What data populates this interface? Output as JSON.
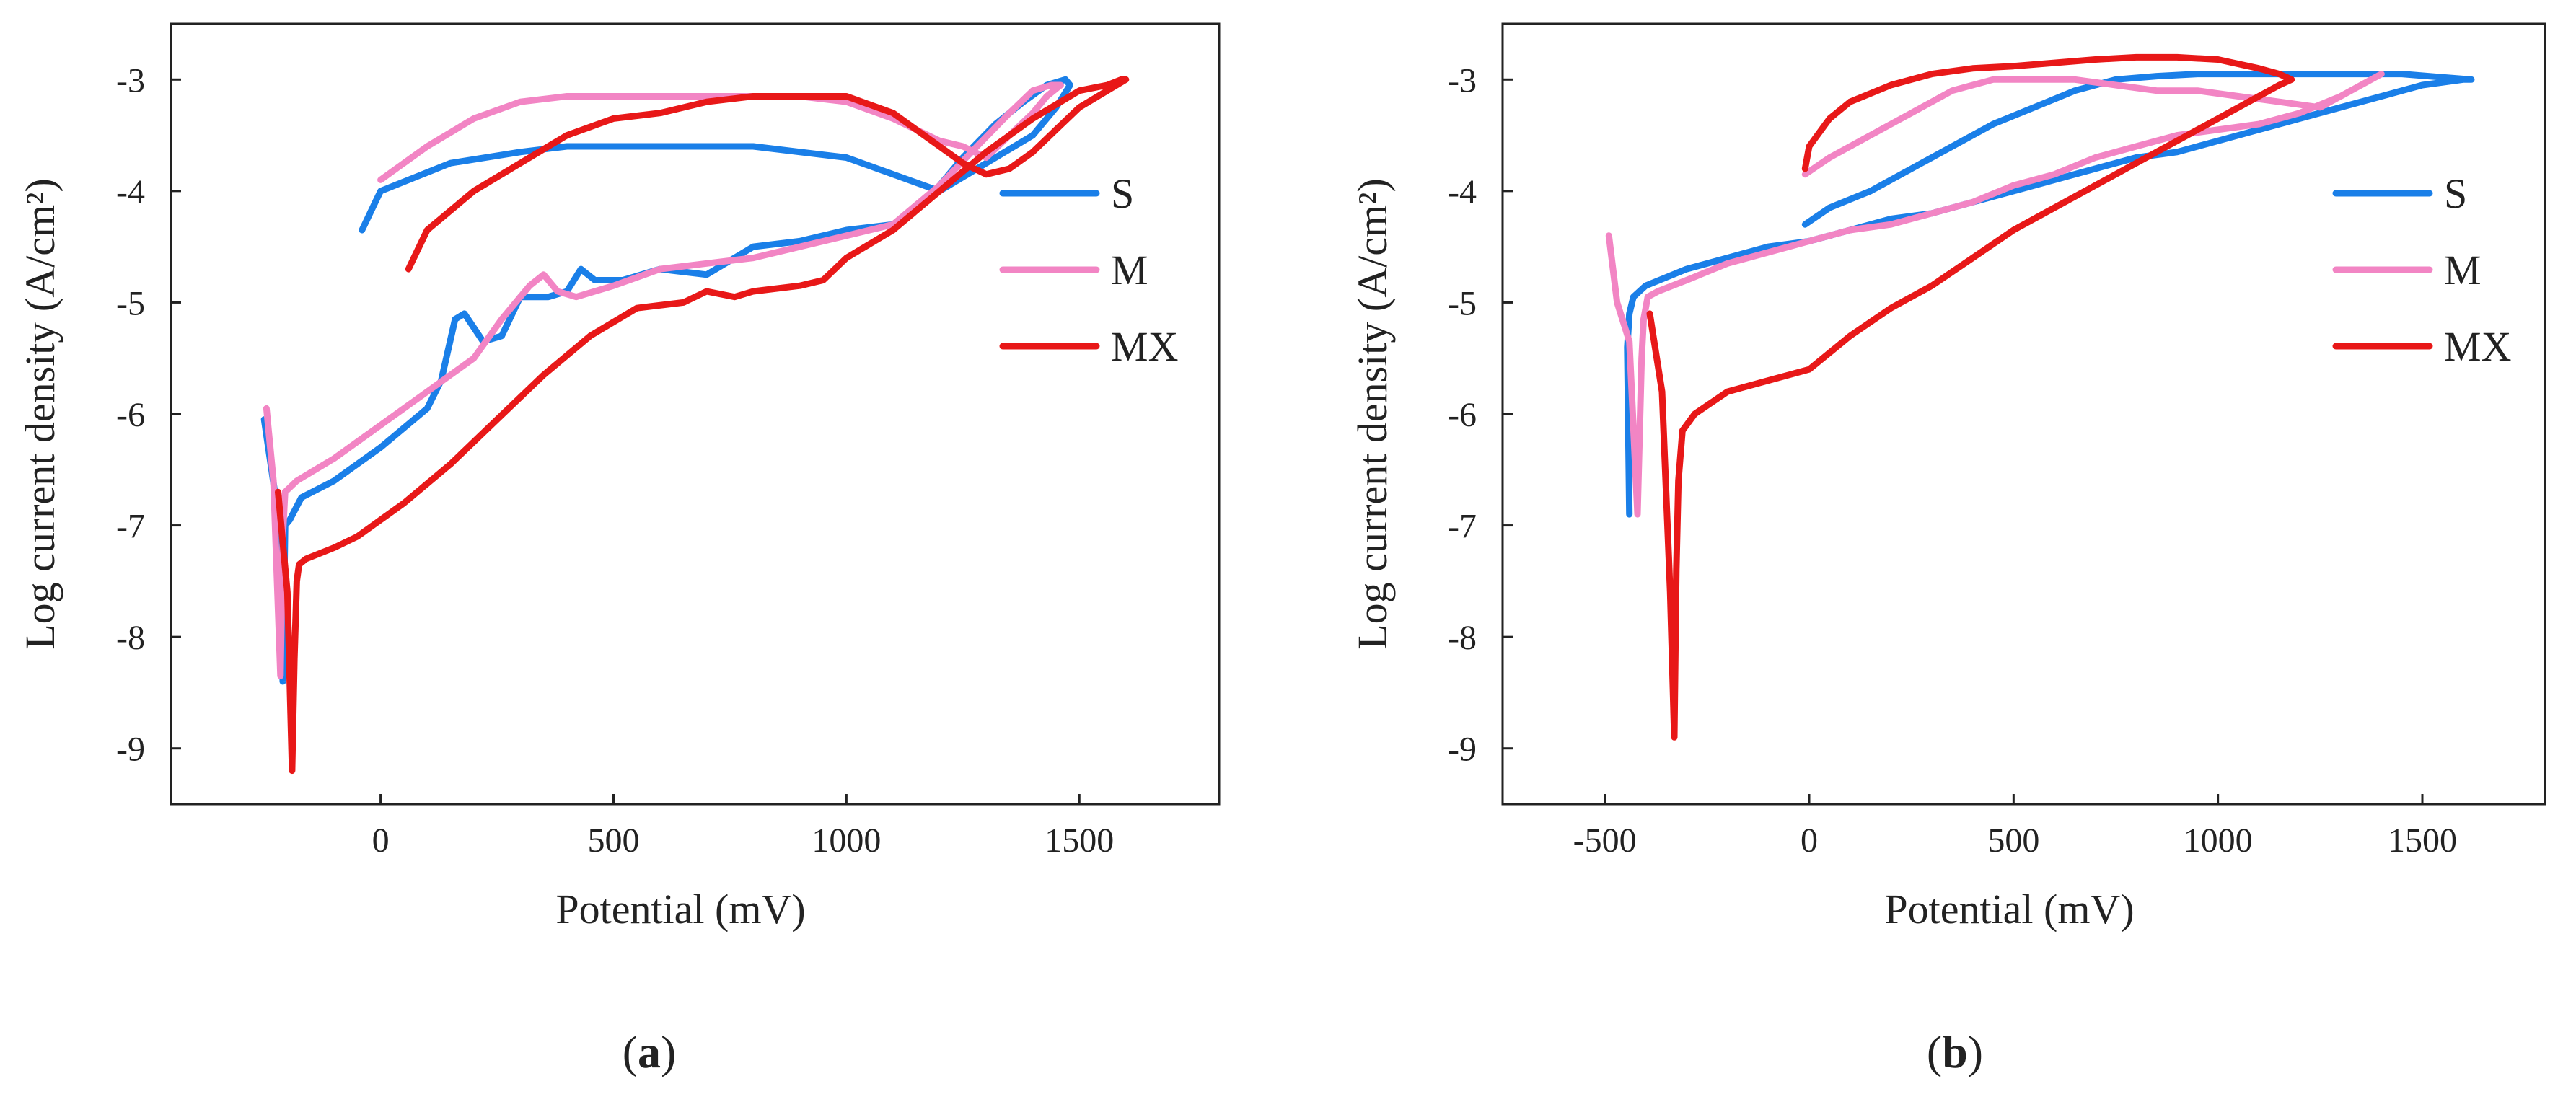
{
  "figure": {
    "panel_labels": [
      {
        "open": "(",
        "letter": "a",
        "close": ")"
      },
      {
        "open": "(",
        "letter": "b",
        "close": ")"
      }
    ]
  },
  "colors": {
    "S": "#1a7fe8",
    "M": "#f285c4",
    "MX": "#e81818"
  },
  "chart_data": [
    {
      "type": "line",
      "xlabel": "Potential (mV)",
      "ylabel": "Log current density (A/cm²)",
      "xlim": [
        -450,
        1800
      ],
      "ylim": [
        -9.5,
        -2.5
      ],
      "xticks": [
        0,
        500,
        1000,
        1500
      ],
      "yticks": [
        -3,
        -4,
        -5,
        -6,
        -7,
        -8,
        -9
      ],
      "xticklabels": [
        "0",
        "500",
        "1000",
        "1500"
      ],
      "yticklabels": [
        "-3",
        "-4",
        "-5",
        "-6",
        "-7",
        "-8",
        "-9"
      ],
      "grid": false,
      "legend": "right",
      "series": [
        {
          "name": "S",
          "x": [
            -250,
            -220,
            -210,
            -205,
            -195,
            -170,
            -100,
            0,
            100,
            130,
            160,
            180,
            220,
            260,
            300,
            360,
            400,
            430,
            460,
            520,
            600,
            700,
            800,
            900,
            1000,
            1100,
            1180,
            1250,
            1320,
            1380,
            1430,
            1470,
            1480,
            1450,
            1400,
            1300,
            1200,
            1100,
            1000,
            800,
            600,
            400,
            300,
            150,
            0,
            -40
          ],
          "y": [
            -6.05,
            -6.9,
            -8.4,
            -7.0,
            -6.95,
            -6.75,
            -6.6,
            -6.3,
            -5.95,
            -5.7,
            -5.15,
            -5.1,
            -5.35,
            -5.3,
            -4.95,
            -4.95,
            -4.9,
            -4.7,
            -4.8,
            -4.8,
            -4.7,
            -4.75,
            -4.5,
            -4.45,
            -4.35,
            -4.3,
            -4.05,
            -3.7,
            -3.4,
            -3.2,
            -3.05,
            -3.0,
            -3.05,
            -3.25,
            -3.5,
            -3.75,
            -4.0,
            -3.85,
            -3.7,
            -3.6,
            -3.6,
            -3.6,
            -3.65,
            -3.75,
            -4.0,
            -4.35
          ]
        },
        {
          "name": "M",
          "x": [
            -245,
            -230,
            -215,
            -210,
            -205,
            -180,
            -100,
            0,
            100,
            200,
            260,
            290,
            320,
            350,
            380,
            420,
            500,
            600,
            700,
            800,
            900,
            1000,
            1100,
            1200,
            1280,
            1350,
            1400,
            1440,
            1460,
            1430,
            1400,
            1350,
            1300,
            1250,
            1200,
            1100,
            1000,
            900,
            800,
            700,
            600,
            500,
            400,
            300,
            200,
            100,
            0
          ],
          "y": [
            -5.95,
            -6.6,
            -8.35,
            -7.1,
            -6.7,
            -6.6,
            -6.4,
            -6.1,
            -5.8,
            -5.5,
            -5.15,
            -5.0,
            -4.85,
            -4.75,
            -4.9,
            -4.95,
            -4.85,
            -4.7,
            -4.65,
            -4.6,
            -4.5,
            -4.4,
            -4.3,
            -3.95,
            -3.6,
            -3.3,
            -3.1,
            -3.05,
            -3.05,
            -3.15,
            -3.3,
            -3.5,
            -3.7,
            -3.6,
            -3.55,
            -3.35,
            -3.2,
            -3.15,
            -3.15,
            -3.15,
            -3.15,
            -3.15,
            -3.15,
            -3.2,
            -3.35,
            -3.6,
            -3.9
          ]
        },
        {
          "name": "MX",
          "x": [
            -220,
            -200,
            -190,
            -185,
            -180,
            -175,
            -160,
            -100,
            -50,
            0,
            50,
            150,
            250,
            350,
            450,
            550,
            650,
            700,
            760,
            800,
            900,
            950,
            1000,
            1100,
            1200,
            1300,
            1400,
            1500,
            1560,
            1590,
            1600,
            1560,
            1500,
            1450,
            1400,
            1350,
            1300,
            1250,
            1200,
            1100,
            1000,
            900,
            800,
            700,
            600,
            500,
            400,
            300,
            200,
            100,
            60
          ],
          "y": [
            -6.7,
            -7.6,
            -9.2,
            -8.2,
            -7.5,
            -7.35,
            -7.3,
            -7.2,
            -7.1,
            -6.95,
            -6.8,
            -6.45,
            -6.05,
            -5.65,
            -5.3,
            -5.05,
            -5.0,
            -4.9,
            -4.95,
            -4.9,
            -4.85,
            -4.8,
            -4.6,
            -4.35,
            -4.0,
            -3.65,
            -3.35,
            -3.1,
            -3.05,
            -3.0,
            -3.0,
            -3.1,
            -3.25,
            -3.45,
            -3.65,
            -3.8,
            -3.85,
            -3.75,
            -3.6,
            -3.3,
            -3.15,
            -3.15,
            -3.15,
            -3.2,
            -3.3,
            -3.35,
            -3.5,
            -3.75,
            -4.0,
            -4.35,
            -4.7
          ]
        }
      ]
    },
    {
      "type": "line",
      "xlabel": "Potential (mV)",
      "ylabel": "Log current density (A/cm²)",
      "xlim": [
        -750,
        1800
      ],
      "ylim": [
        -9.5,
        -2.5
      ],
      "xticks": [
        -500,
        0,
        500,
        1000,
        1500
      ],
      "yticks": [
        -3,
        -4,
        -5,
        -6,
        -7,
        -8,
        -9
      ],
      "xticklabels": [
        "-500",
        "0",
        "500",
        "1000",
        "1500"
      ],
      "yticklabels": [
        "-3",
        "-4",
        "-5",
        "-6",
        "-7",
        "-8",
        "-9"
      ],
      "grid": false,
      "legend": "right",
      "series": [
        {
          "name": "S",
          "x": [
            -440,
            -445,
            -440,
            -430,
            -400,
            -300,
            -200,
            -100,
            0,
            100,
            200,
            300,
            400,
            500,
            600,
            700,
            800,
            900,
            1000,
            1100,
            1200,
            1300,
            1400,
            1500,
            1600,
            1620,
            1550,
            1450,
            1350,
            1250,
            1150,
            1050,
            950,
            850,
            750,
            650,
            550,
            450,
            350,
            250,
            150,
            50,
            -10
          ],
          "y": [
            -6.9,
            -5.4,
            -5.1,
            -4.95,
            -4.85,
            -4.7,
            -4.6,
            -4.5,
            -4.45,
            -4.35,
            -4.25,
            -4.2,
            -4.1,
            -4.0,
            -3.9,
            -3.8,
            -3.7,
            -3.65,
            -3.55,
            -3.45,
            -3.35,
            -3.25,
            -3.15,
            -3.05,
            -3.0,
            -3.0,
            -2.98,
            -2.95,
            -2.95,
            -2.95,
            -2.95,
            -2.95,
            -2.95,
            -2.97,
            -3.0,
            -3.1,
            -3.25,
            -3.4,
            -3.6,
            -3.8,
            -4.0,
            -4.15,
            -4.3
          ]
        },
        {
          "name": "M",
          "x": [
            -490,
            -470,
            -440,
            -420,
            -410,
            -405,
            -395,
            -370,
            -300,
            -200,
            -100,
            0,
            100,
            200,
            300,
            400,
            500,
            600,
            700,
            800,
            900,
            1000,
            1100,
            1200,
            1300,
            1400,
            1350,
            1250,
            1150,
            1050,
            950,
            850,
            750,
            650,
            550,
            450,
            350,
            250,
            150,
            50,
            -10
          ],
          "y": [
            -4.4,
            -5.0,
            -5.35,
            -6.9,
            -5.5,
            -5.15,
            -4.95,
            -4.9,
            -4.8,
            -4.65,
            -4.55,
            -4.45,
            -4.35,
            -4.3,
            -4.2,
            -4.1,
            -3.95,
            -3.85,
            -3.7,
            -3.6,
            -3.5,
            -3.45,
            -3.4,
            -3.3,
            -3.15,
            -2.95,
            -3.05,
            -3.25,
            -3.2,
            -3.15,
            -3.1,
            -3.1,
            -3.05,
            -3.0,
            -3.0,
            -3.0,
            -3.1,
            -3.3,
            -3.5,
            -3.7,
            -3.85
          ]
        },
        {
          "name": "MX",
          "x": [
            -390,
            -360,
            -340,
            -330,
            -325,
            -320,
            -310,
            -280,
            -200,
            -100,
            0,
            100,
            200,
            300,
            400,
            500,
            600,
            700,
            800,
            900,
            1000,
            1100,
            1150,
            1180,
            1150,
            1100,
            1000,
            900,
            800,
            700,
            600,
            500,
            400,
            300,
            200,
            100,
            50,
            0,
            -10
          ],
          "y": [
            -5.1,
            -5.8,
            -7.6,
            -8.9,
            -7.4,
            -6.6,
            -6.15,
            -6.0,
            -5.8,
            -5.7,
            -5.6,
            -5.3,
            -5.05,
            -4.85,
            -4.6,
            -4.35,
            -4.15,
            -3.95,
            -3.75,
            -3.55,
            -3.35,
            -3.15,
            -3.05,
            -3.0,
            -2.95,
            -2.9,
            -2.82,
            -2.8,
            -2.8,
            -2.82,
            -2.85,
            -2.88,
            -2.9,
            -2.95,
            -3.05,
            -3.2,
            -3.35,
            -3.6,
            -3.8
          ]
        }
      ]
    }
  ]
}
